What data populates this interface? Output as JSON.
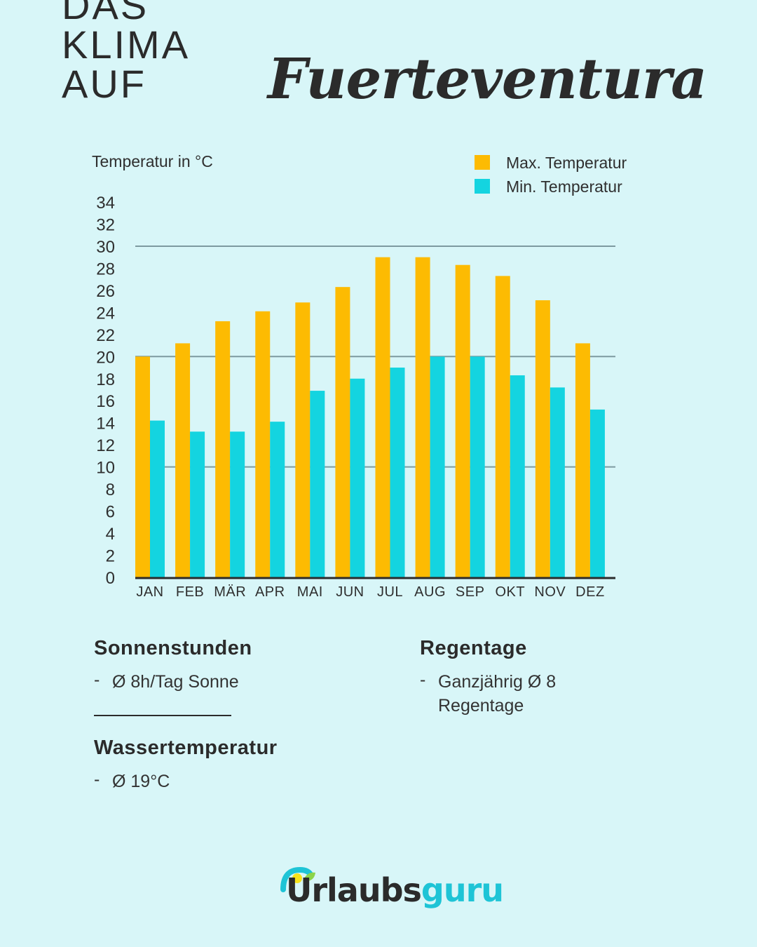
{
  "title": {
    "plain": "DAS KLIMA AUF",
    "script": "Fuerteventura"
  },
  "chart_data": {
    "type": "bar",
    "ylabel": "Temperatur in °C",
    "ylim": [
      0,
      34
    ],
    "yticks": [
      0,
      2,
      4,
      6,
      8,
      10,
      12,
      14,
      16,
      18,
      20,
      22,
      24,
      26,
      28,
      30,
      32,
      34
    ],
    "gridlines": [
      10,
      20,
      30
    ],
    "legend_position": "top-right",
    "categories": [
      "JAN",
      "FEB",
      "MÄR",
      "APR",
      "MAI",
      "JUN",
      "JUL",
      "AUG",
      "SEP",
      "OKT",
      "NOV",
      "DEZ"
    ],
    "series": [
      {
        "name": "Max. Temperatur",
        "color": "#fdbb02",
        "values": [
          20,
          21.2,
          23.2,
          24.1,
          24.9,
          26.3,
          29,
          29,
          28.3,
          27.3,
          25.1,
          21.2
        ]
      },
      {
        "name": "Min. Temperatur",
        "color": "#14d4e0",
        "values": [
          14.2,
          13.2,
          13.2,
          14.1,
          16.9,
          18,
          19,
          20,
          20,
          18.3,
          17.2,
          15.2
        ]
      }
    ]
  },
  "info": {
    "sun": {
      "heading": "Sonnenstunden",
      "dash": "-",
      "text": "Ø 8h/Tag Sonne"
    },
    "rain": {
      "heading": "Regentage",
      "dash": "-",
      "line1": "Ganzjährig Ø 8",
      "line2": "Regentage"
    },
    "water": {
      "heading": "Wassertemperatur",
      "dash": "-",
      "text": "Ø 19°C"
    }
  },
  "logo": {
    "part1": "Urlaubs",
    "part2": "guru",
    "color_dark": "#2b2b2b",
    "color_accent": "#1ec4d6"
  }
}
